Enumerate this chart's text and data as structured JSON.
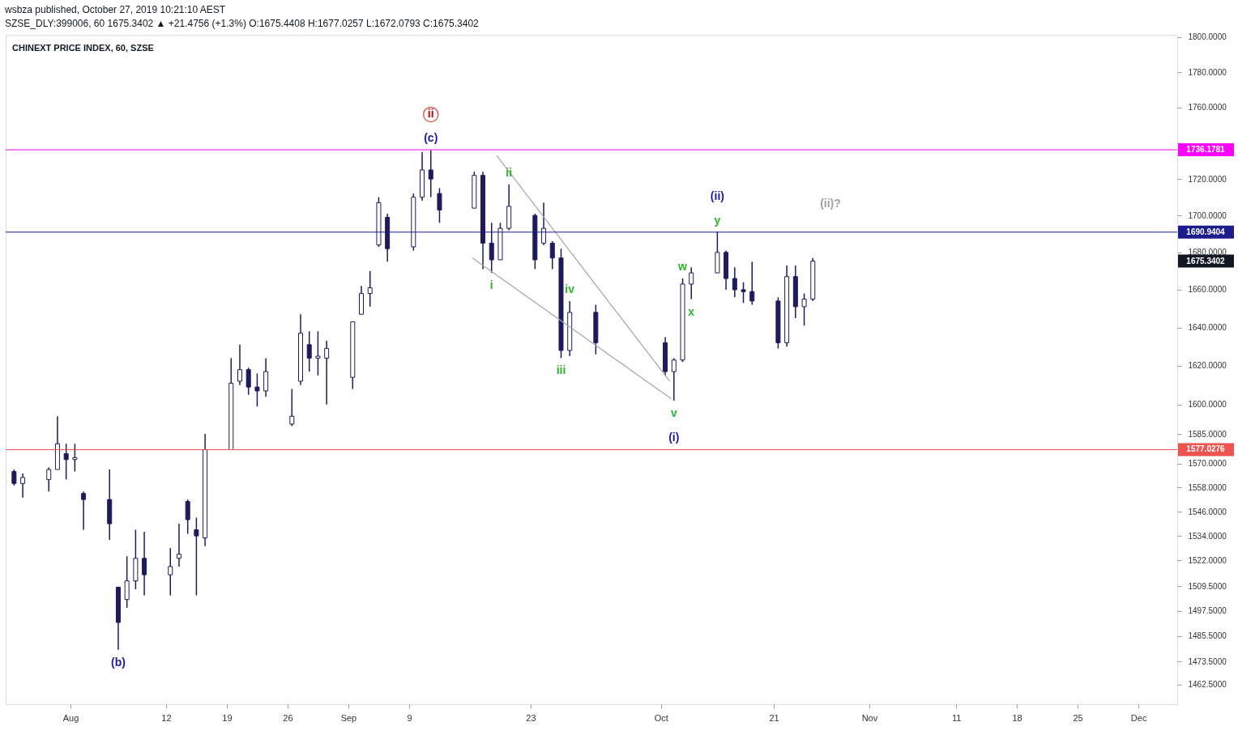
{
  "chart_data": {
    "type": "candlestick",
    "title": "CHINEXT PRICE INDEX, 60, SZSE",
    "subtitle": "SZSE_DLY:399006, 60  1675.3402 ▲ +21.4756 (+1.3%)  O:1675.4408  H:1677.0257  L:1672.0793  C:1675.3402",
    "series": [
      {
        "color": "#1f1a5c",
        "x": [
          "2019-07-25T12:00",
          "2019-07-26T12:00",
          "2019-07-29T12:00",
          "2019-07-30T12:00",
          "2019-07-31T12:00",
          "2019-08-01T12:00",
          "2019-08-02T12:00",
          "2019-08-05T12:00",
          "2019-08-06T12:00",
          "2019-08-07T12:00",
          "2019-08-08T12:00",
          "2019-08-09T12:00",
          "2019-08-12T12:00",
          "2019-08-13T12:00",
          "2019-08-14T12:00",
          "2019-08-15T12:00",
          "2019-08-16T12:00",
          "2019-08-19T12:00",
          "2019-08-20T12:00",
          "2019-08-21T12:00",
          "2019-08-22T12:00",
          "2019-08-23T12:00",
          "2019-08-26T12:00",
          "2019-08-27T12:00",
          "2019-08-28T12:00",
          "2019-08-29T12:00",
          "2019-08-30T12:00",
          "2019-09-02T12:00",
          "2019-09-03T12:00",
          "2019-09-04T12:00",
          "2019-09-05T12:00",
          "2019-09-06T12:00",
          "2019-09-09T12:00",
          "2019-09-10T12:00",
          "2019-09-11T12:00",
          "2019-09-12T12:00",
          "2019-09-16T12:00",
          "2019-09-17T12:00",
          "2019-09-18T12:00",
          "2019-09-19T12:00",
          "2019-09-20T12:00",
          "2019-09-23T12:00",
          "2019-09-24T12:00",
          "2019-09-25T12:00",
          "2019-09-26T12:00",
          "2019-09-27T12:00",
          "2019-09-30T12:00",
          "2019-10-08T12:00",
          "2019-10-09T12:00",
          "2019-10-10T12:00",
          "2019-10-11T12:00",
          "2019-10-14T12:00",
          "2019-10-15T12:00",
          "2019-10-16T12:00",
          "2019-10-17T12:00",
          "2019-10-18T12:00",
          "2019-10-21T12:00",
          "2019-10-22T12:00",
          "2019-10-23T12:00",
          "2019-10-24T12:00",
          "2019-10-25T12:00"
        ],
        "ohlc": [
          [
            1566,
            1567,
            1559,
            1560
          ],
          [
            1560,
            1565,
            1553,
            1563
          ],
          [
            1562,
            1568,
            1556,
            1567
          ],
          [
            1567,
            1594,
            1567,
            1580
          ],
          [
            1575,
            1580,
            1562,
            1572
          ],
          [
            1572,
            1580,
            1566,
            1573
          ],
          [
            1555,
            1556,
            1537,
            1552
          ],
          [
            1552,
            1567,
            1532,
            1540
          ],
          [
            1509,
            1509,
            1479,
            1492
          ],
          [
            1503,
            1524,
            1499,
            1512
          ],
          [
            1512,
            1537,
            1508,
            1523
          ],
          [
            1523,
            1536,
            1505,
            1515
          ],
          [
            1515,
            1528,
            1505,
            1519
          ],
          [
            1523,
            1540,
            1519,
            1525
          ],
          [
            1551,
            1552,
            1535,
            1542
          ],
          [
            1537,
            1543,
            1505,
            1534
          ],
          [
            1533,
            1585,
            1529,
            1577
          ],
          [
            1577,
            1624,
            1577,
            1611
          ],
          [
            1612,
            1631,
            1610,
            1618
          ],
          [
            1618,
            1619,
            1605,
            1609
          ],
          [
            1609,
            1616,
            1599,
            1607
          ],
          [
            1607,
            1624,
            1604,
            1617
          ],
          [
            1590,
            1608,
            1589,
            1594
          ],
          [
            1612,
            1647,
            1610,
            1637
          ],
          [
            1631,
            1638,
            1617,
            1624
          ],
          [
            1624,
            1638,
            1615,
            1625
          ],
          [
            1624,
            1633,
            1600,
            1629
          ],
          [
            1614,
            1643,
            1608,
            1643
          ],
          [
            1647,
            1662,
            1647,
            1658
          ],
          [
            1658,
            1670,
            1651,
            1661
          ],
          [
            1684,
            1710,
            1683,
            1707
          ],
          [
            1699,
            1701,
            1675,
            1682
          ],
          [
            1683,
            1712,
            1681,
            1710
          ],
          [
            1710,
            1735,
            1708,
            1725
          ],
          [
            1725,
            1736,
            1710,
            1720
          ],
          [
            1712,
            1715,
            1696,
            1703
          ],
          [
            1704,
            1724,
            1704,
            1722
          ],
          [
            1722,
            1724,
            1671,
            1685
          ],
          [
            1685,
            1696,
            1669,
            1676
          ],
          [
            1676,
            1696,
            1676,
            1693
          ],
          [
            1693,
            1717,
            1692,
            1705
          ],
          [
            1700,
            1701,
            1671,
            1676
          ],
          [
            1685,
            1707,
            1684,
            1693
          ],
          [
            1685,
            1686,
            1671,
            1677
          ],
          [
            1677,
            1682,
            1624,
            1628
          ],
          [
            1628,
            1654,
            1625,
            1648
          ],
          [
            1648,
            1652,
            1626,
            1632
          ],
          [
            1632,
            1635,
            1615,
            1617
          ],
          [
            1617,
            1624,
            1602,
            1623
          ],
          [
            1623,
            1666,
            1622,
            1663
          ],
          [
            1663,
            1672,
            1655,
            1669
          ],
          [
            1669,
            1691,
            1669,
            1680
          ],
          [
            1680,
            1681,
            1660,
            1666
          ],
          [
            1666,
            1672,
            1656,
            1660
          ],
          [
            1660,
            1664,
            1653,
            1659
          ],
          [
            1659,
            1675,
            1652,
            1654
          ],
          [
            1654,
            1656,
            1629,
            1632
          ],
          [
            1632,
            1673,
            1630,
            1667
          ],
          [
            1667,
            1673,
            1645,
            1651
          ],
          [
            1651,
            1658,
            1641,
            1655
          ],
          [
            1655,
            1677,
            1654,
            1675.3
          ]
        ]
      },
      {
        "type": "line",
        "color": "#a6a6a6",
        "x": [
          "2019-09-16T07:00",
          "2019-10-09T04:00"
        ],
        "values": [
          1677,
          1603
        ]
      },
      {
        "type": "line",
        "color": "#a6a6a6",
        "x": [
          "2019-09-19T02:00",
          "2019-10-09T00:00"
        ],
        "values": [
          1733,
          1612
        ]
      }
    ],
    "xlim": [
      "2019-07-25T00:00",
      "2019-12-06T00:00"
    ],
    "xticks": [
      {
        "value": "2019-08-01",
        "label": "Aug"
      },
      {
        "value": "2019-08-12",
        "label": "12"
      },
      {
        "value": "2019-08-19",
        "label": "19"
      },
      {
        "value": "2019-08-26",
        "label": "26"
      },
      {
        "value": "2019-09-02",
        "label": "Sep"
      },
      {
        "value": "2019-09-09",
        "label": "9"
      },
      {
        "value": "2019-09-23",
        "label": "23"
      },
      {
        "value": "2019-10-08",
        "label": "Oct"
      },
      {
        "value": "2019-10-21",
        "label": "21"
      },
      {
        "value": "2019-11-01",
        "label": "Nov"
      },
      {
        "value": "2019-11-11",
        "label": "11"
      },
      {
        "value": "2019-11-18",
        "label": "18"
      },
      {
        "value": "2019-11-25",
        "label": "25"
      },
      {
        "value": "2019-12-02",
        "label": "Dec"
      }
    ],
    "ylim": [
      1453.4,
      1801.4
    ],
    "yticks": [
      {
        "value": 1462.5,
        "label": "1462.5000"
      },
      {
        "value": 1473.5,
        "label": "1473.5000"
      },
      {
        "value": 1485.5,
        "label": "1485.5000"
      },
      {
        "value": 1497.5,
        "label": "1497.5000"
      },
      {
        "value": 1509.5,
        "label": "1509.5000"
      },
      {
        "value": 1522,
        "label": "1522.0000"
      },
      {
        "value": 1534,
        "label": "1534.0000"
      },
      {
        "value": 1546,
        "label": "1546.0000"
      },
      {
        "value": 1558,
        "label": "1558.0000"
      },
      {
        "value": 1570,
        "label": "1570.0000"
      },
      {
        "value": 1585,
        "label": "1585.0000"
      },
      {
        "value": 1600,
        "label": "1600.0000"
      },
      {
        "value": 1620,
        "label": "1620.0000"
      },
      {
        "value": 1640,
        "label": "1640.0000"
      },
      {
        "value": 1660,
        "label": "1660.0000"
      },
      {
        "value": 1680,
        "label": "1680.0000"
      },
      {
        "value": 1700,
        "label": "1700.0000"
      },
      {
        "value": 1720,
        "label": "1720.0000"
      },
      {
        "value": 1740,
        "label": null
      },
      {
        "value": 1760,
        "label": "1760.0000"
      },
      {
        "value": 1780,
        "label": "1780.0000"
      },
      {
        "value": 1800,
        "label": "1800.0000"
      }
    ],
    "log": true,
    "ref_lines": [
      {
        "axis": "y",
        "value": 1736.1781,
        "label": "1736.1781",
        "color": "#ff00ff"
      },
      {
        "axis": "y",
        "value": 1690.9404,
        "label": "1690.9404",
        "color": "#1c1c8c"
      },
      {
        "axis": "y",
        "value": 1577.0276,
        "label": "1577.0276",
        "color": "#ef5350"
      }
    ],
    "annotations": [
      "wsbza published, October 27, 2019 10:21:10 AEST",
      "1675.3402",
      "(ii)?",
      {
        "text": "(c)",
        "x": "2019-09-11T12:00",
        "y": 1736
      },
      {
        "text": "ii",
        "x": "2019-09-11T12:00",
        "y": 1736
      },
      {
        "text": "ii",
        "x": "2019-09-20T12:00",
        "y": 1717
      },
      {
        "text": "i",
        "x": "2019-09-18T12:00",
        "y": 1669
      },
      {
        "text": "iv",
        "x": "2019-09-27T12:00",
        "y": 1654
      },
      {
        "text": "iii",
        "x": "2019-09-26T12:00",
        "y": 1624
      },
      {
        "text": "v",
        "x": "2019-10-09T12:00",
        "y": 1602
      },
      {
        "text": "(i)",
        "x": "2019-10-09T12:00",
        "y": 1602
      },
      {
        "text": "y",
        "x": "2019-10-14T12:00",
        "y": 1691
      },
      {
        "text": "(ii)",
        "x": "2019-10-14T12:00",
        "y": 1691
      },
      {
        "text": "w",
        "x": "2019-10-10T12:00",
        "y": 1666
      },
      {
        "text": "x",
        "x": "2019-10-11T12:00",
        "y": 1655
      },
      {
        "text": "(b)",
        "x": "2019-08-06T12:00",
        "y": 1479
      }
    ]
  }
}
